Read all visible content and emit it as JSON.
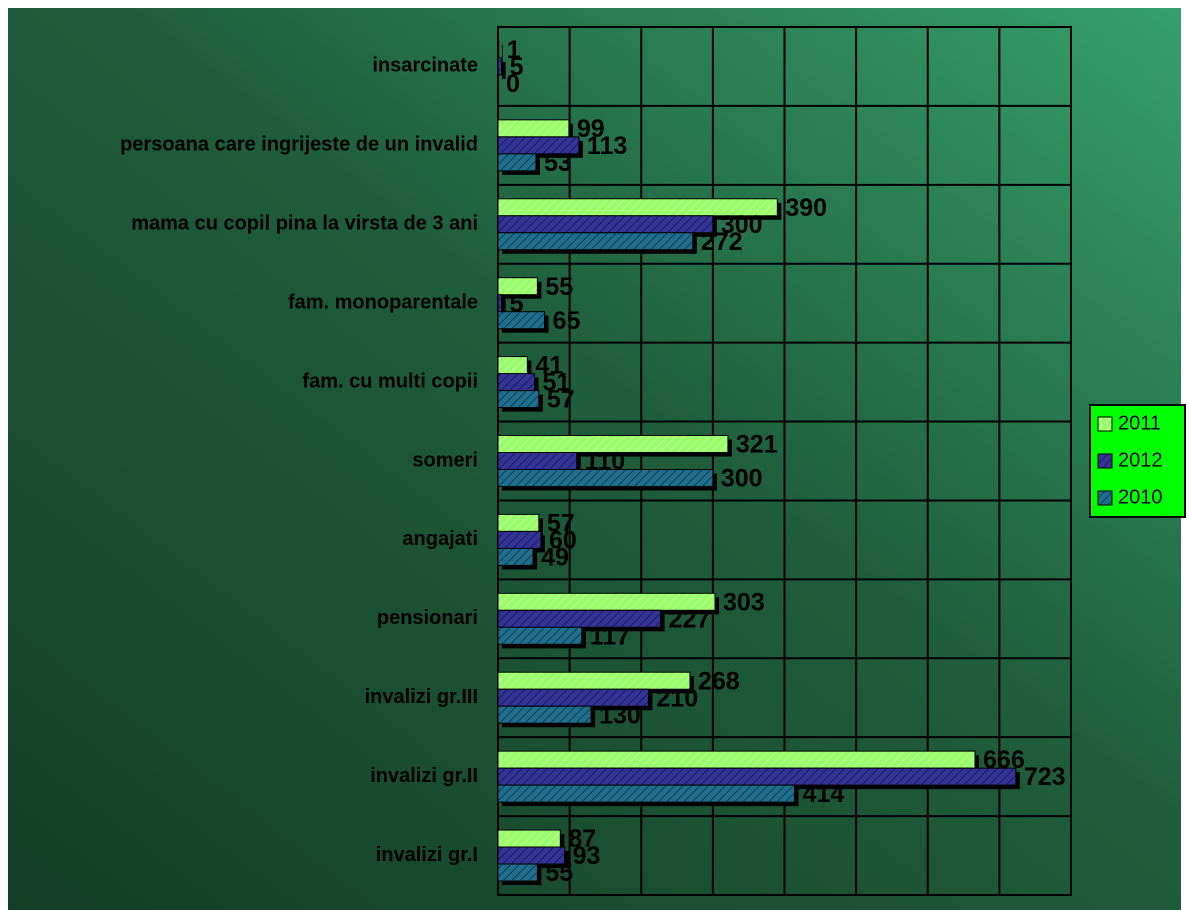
{
  "chart_data": {
    "type": "bar",
    "orientation": "horizontal",
    "categories": [
      "insarcinate",
      "persoana care ingrijeste de un invalid",
      "mama cu copil pina la virsta de 3 ani",
      "fam. monoparentale",
      "fam. cu multi copii",
      "someri",
      "angajati",
      "pensionari",
      "invalizi gr.III",
      "invalizi gr.II",
      "invalizi gr.I"
    ],
    "series": [
      {
        "name": "2011",
        "color": "#99ff66",
        "values": [
          1,
          99,
          390,
          55,
          41,
          321,
          57,
          303,
          268,
          666,
          87
        ]
      },
      {
        "name": "2012",
        "color": "#333399",
        "values": [
          5,
          113,
          300,
          5,
          51,
          110,
          60,
          227,
          210,
          723,
          93
        ]
      },
      {
        "name": "2010",
        "color": "#1f6f8f",
        "values": [
          0,
          53,
          272,
          65,
          57,
          300,
          49,
          117,
          130,
          414,
          55
        ]
      }
    ],
    "xlim": [
      0,
      800
    ],
    "xticks": [
      0,
      100,
      200,
      300,
      400,
      500,
      600,
      700,
      800
    ],
    "grid": true,
    "legend": "right"
  }
}
